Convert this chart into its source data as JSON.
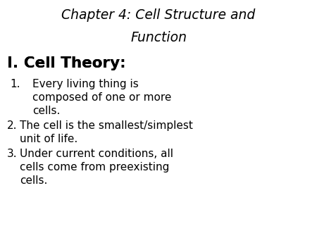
{
  "background_color": "#ffffff",
  "title_line1": "Chapter 4: Cell Structure and",
  "title_line2": "Function",
  "title_font_size": 13.5,
  "section_header_normal": "I. Cell Theory",
  "section_header_colon": ":",
  "section_font_size": 15.5,
  "body_font_size": 11,
  "items": [
    {
      "number": "1.",
      "indent": true,
      "lines": [
        "Every living thing is",
        "composed of one or more",
        "cells."
      ]
    },
    {
      "number": "2.",
      "indent": false,
      "lines": [
        "The cell is the smallest/simplest",
        "unit of life."
      ]
    },
    {
      "number": "3.",
      "indent": false,
      "lines": [
        "Under current conditions, all",
        "cells come from preexisting",
        "cells."
      ]
    }
  ],
  "text_color": "#000000",
  "fig_width": 4.5,
  "fig_height": 3.38,
  "dpi": 100
}
